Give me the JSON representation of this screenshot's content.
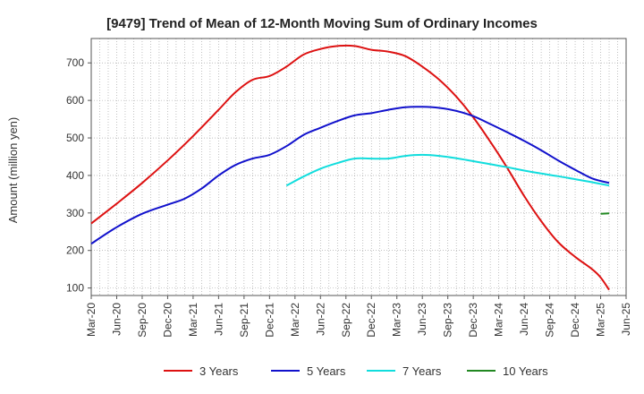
{
  "chart_data": {
    "type": "line",
    "title": "[9479]  Trend of Mean of 12-Month Moving Sum of Ordinary Incomes",
    "xlabel": "",
    "ylabel": "Amount (million yen)",
    "ylim": [
      80,
      765
    ],
    "yticks": [
      100,
      200,
      300,
      400,
      500,
      600,
      700
    ],
    "xlim_months": [
      0,
      63
    ],
    "xticks": [
      {
        "label": "Mar-20",
        "m": 0
      },
      {
        "label": "Jun-20",
        "m": 3
      },
      {
        "label": "Sep-20",
        "m": 6
      },
      {
        "label": "Dec-20",
        "m": 9
      },
      {
        "label": "Mar-21",
        "m": 12
      },
      {
        "label": "Jun-21",
        "m": 15
      },
      {
        "label": "Sep-21",
        "m": 18
      },
      {
        "label": "Dec-21",
        "m": 21
      },
      {
        "label": "Mar-22",
        "m": 24
      },
      {
        "label": "Jun-22",
        "m": 27
      },
      {
        "label": "Sep-22",
        "m": 30
      },
      {
        "label": "Dec-22",
        "m": 33
      },
      {
        "label": "Mar-23",
        "m": 36
      },
      {
        "label": "Jun-23",
        "m": 39
      },
      {
        "label": "Sep-23",
        "m": 42
      },
      {
        "label": "Dec-23",
        "m": 45
      },
      {
        "label": "Mar-24",
        "m": 48
      },
      {
        "label": "Jun-24",
        "m": 51
      },
      {
        "label": "Sep-24",
        "m": 54
      },
      {
        "label": "Dec-24",
        "m": 57
      },
      {
        "label": "Mar-25",
        "m": 60
      },
      {
        "label": "Jun-25",
        "m": 63
      }
    ],
    "grid": true,
    "legend_position": "bottom",
    "series": [
      {
        "name": "3 Years",
        "color": "#dd1111",
        "points": [
          [
            0,
            272
          ],
          [
            3,
            325
          ],
          [
            6,
            380
          ],
          [
            9,
            440
          ],
          [
            12,
            505
          ],
          [
            15,
            575
          ],
          [
            17,
            622
          ],
          [
            19,
            655
          ],
          [
            21,
            665
          ],
          [
            23,
            690
          ],
          [
            25,
            722
          ],
          [
            27,
            737
          ],
          [
            29,
            745
          ],
          [
            31,
            745
          ],
          [
            33,
            735
          ],
          [
            35,
            730
          ],
          [
            37,
            718
          ],
          [
            39,
            690
          ],
          [
            41,
            655
          ],
          [
            43,
            610
          ],
          [
            45,
            555
          ],
          [
            47,
            490
          ],
          [
            49,
            420
          ],
          [
            51,
            345
          ],
          [
            53,
            278
          ],
          [
            55,
            222
          ],
          [
            57,
            183
          ],
          [
            59,
            150
          ],
          [
            60,
            128
          ],
          [
            61,
            95
          ]
        ]
      },
      {
        "name": "5 Years",
        "color": "#1111cc",
        "points": [
          [
            0,
            218
          ],
          [
            3,
            262
          ],
          [
            6,
            298
          ],
          [
            9,
            322
          ],
          [
            11,
            338
          ],
          [
            13,
            365
          ],
          [
            15,
            400
          ],
          [
            17,
            428
          ],
          [
            19,
            445
          ],
          [
            21,
            455
          ],
          [
            23,
            478
          ],
          [
            25,
            508
          ],
          [
            27,
            527
          ],
          [
            29,
            545
          ],
          [
            31,
            560
          ],
          [
            33,
            566
          ],
          [
            35,
            575
          ],
          [
            37,
            582
          ],
          [
            39,
            583
          ],
          [
            41,
            580
          ],
          [
            43,
            572
          ],
          [
            45,
            558
          ],
          [
            47,
            537
          ],
          [
            49,
            515
          ],
          [
            51,
            492
          ],
          [
            53,
            467
          ],
          [
            55,
            440
          ],
          [
            57,
            415
          ],
          [
            59,
            392
          ],
          [
            61,
            380
          ]
        ]
      },
      {
        "name": "7 Years",
        "color": "#11dddd",
        "points": [
          [
            23,
            373
          ],
          [
            25,
            397
          ],
          [
            27,
            418
          ],
          [
            29,
            433
          ],
          [
            31,
            445
          ],
          [
            33,
            445
          ],
          [
            35,
            445
          ],
          [
            37,
            452
          ],
          [
            39,
            455
          ],
          [
            41,
            452
          ],
          [
            43,
            446
          ],
          [
            45,
            438
          ],
          [
            47,
            430
          ],
          [
            49,
            422
          ],
          [
            51,
            413
          ],
          [
            53,
            405
          ],
          [
            55,
            398
          ],
          [
            57,
            390
          ],
          [
            59,
            382
          ],
          [
            61,
            373
          ]
        ]
      },
      {
        "name": "10 Years",
        "color": "#228822",
        "points": [
          [
            60,
            298
          ],
          [
            61,
            299
          ]
        ]
      }
    ]
  }
}
